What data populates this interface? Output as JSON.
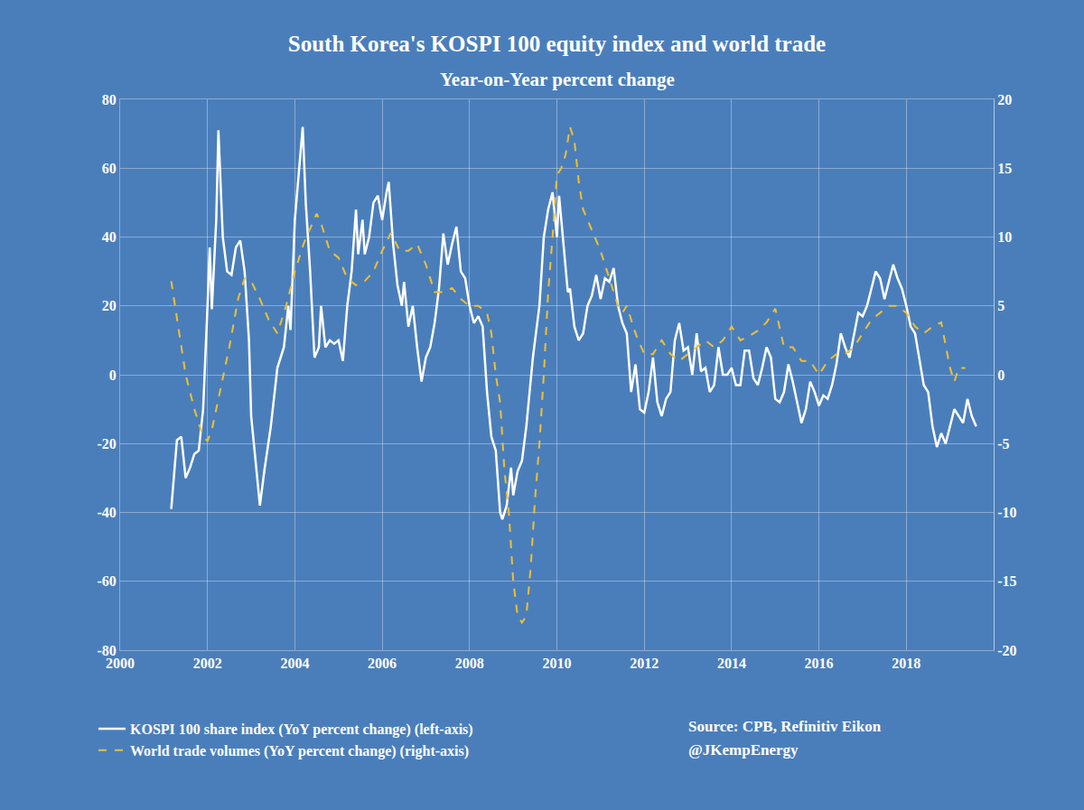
{
  "chart_data": {
    "type": "line",
    "title": "South Korea's KOSPI 100 equity index and world trade",
    "subtitle": "Year-on-Year percent change",
    "annotations": [
      "Source: CPB, Refinitiv Eikon",
      "@JKempEnergy"
    ],
    "xlim": [
      2000,
      2020
    ],
    "xticks": [
      2000,
      2002,
      2004,
      2006,
      2008,
      2010,
      2012,
      2014,
      2016,
      2018
    ],
    "ylim": [
      -80,
      80
    ],
    "yticks": [
      -80,
      -60,
      -40,
      -20,
      0,
      20,
      40,
      60,
      80
    ],
    "y2lim": [
      -20,
      20
    ],
    "y2ticks": [
      -20,
      -15,
      -10,
      -5,
      0,
      5,
      10,
      15,
      20
    ],
    "grid": true,
    "legend": "bottom",
    "series": [
      {
        "name": "KOSPI 100 share index (YoY percent change) (left-axis)",
        "color": "#ffffff",
        "line_style": "solid",
        "axis": "y",
        "x": [
          2001.17,
          2001.3,
          2001.4,
          2001.5,
          2001.6,
          2001.7,
          2001.8,
          2001.9,
          2002.0,
          2002.05,
          2002.1,
          2002.2,
          2002.25,
          2002.35,
          2002.45,
          2002.55,
          2002.65,
          2002.75,
          2002.85,
          2002.95,
          2003.0,
          2003.1,
          2003.2,
          2003.3,
          2003.45,
          2003.6,
          2003.75,
          2003.85,
          2003.9,
          2004.0,
          2004.1,
          2004.18,
          2004.25,
          2004.35,
          2004.45,
          2004.55,
          2004.6,
          2004.7,
          2004.8,
          2004.9,
          2005.0,
          2005.1,
          2005.2,
          2005.3,
          2005.4,
          2005.45,
          2005.55,
          2005.6,
          2005.7,
          2005.8,
          2005.9,
          2006.0,
          2006.1,
          2006.15,
          2006.25,
          2006.35,
          2006.45,
          2006.5,
          2006.6,
          2006.7,
          2006.8,
          2006.9,
          2007.0,
          2007.1,
          2007.2,
          2007.3,
          2007.4,
          2007.5,
          2007.6,
          2007.7,
          2007.8,
          2007.9,
          2008.0,
          2008.1,
          2008.2,
          2008.3,
          2008.4,
          2008.5,
          2008.6,
          2008.7,
          2008.75,
          2008.85,
          2008.95,
          2009.0,
          2009.1,
          2009.2,
          2009.3,
          2009.45,
          2009.6,
          2009.7,
          2009.8,
          2009.9,
          2010.0,
          2010.05,
          2010.15,
          2010.25,
          2010.3,
          2010.4,
          2010.5,
          2010.6,
          2010.7,
          2010.8,
          2010.9,
          2011.0,
          2011.1,
          2011.2,
          2011.3,
          2011.4,
          2011.5,
          2011.6,
          2011.7,
          2011.8,
          2011.9,
          2012.0,
          2012.1,
          2012.2,
          2012.3,
          2012.4,
          2012.5,
          2012.6,
          2012.7,
          2012.8,
          2012.9,
          2013.0,
          2013.1,
          2013.2,
          2013.3,
          2013.4,
          2013.5,
          2013.6,
          2013.7,
          2013.8,
          2013.9,
          2014.0,
          2014.1,
          2014.2,
          2014.3,
          2014.4,
          2014.5,
          2014.6,
          2014.7,
          2014.8,
          2014.9,
          2015.0,
          2015.1,
          2015.2,
          2015.3,
          2015.4,
          2015.5,
          2015.6,
          2015.7,
          2015.8,
          2015.9,
          2016.0,
          2016.1,
          2016.2,
          2016.3,
          2016.4,
          2016.5,
          2016.6,
          2016.7,
          2016.8,
          2016.9,
          2017.0,
          2017.1,
          2017.2,
          2017.3,
          2017.4,
          2017.5,
          2017.6,
          2017.7,
          2017.8,
          2017.9,
          2018.0,
          2018.1,
          2018.2,
          2018.3,
          2018.4,
          2018.5,
          2018.6,
          2018.7,
          2018.8,
          2018.9,
          2019.0,
          2019.1,
          2019.2,
          2019.3,
          2019.4,
          2019.5,
          2019.6
        ],
        "values": [
          -39,
          -19,
          -18,
          -30,
          -27,
          -23,
          -22,
          -10,
          20,
          37,
          19,
          45,
          71,
          40,
          30,
          29,
          37,
          39,
          30,
          10,
          -12,
          -25,
          -38,
          -28,
          -15,
          2,
          8,
          20,
          13,
          45,
          60,
          72,
          50,
          30,
          5,
          8,
          20,
          8,
          10,
          9,
          10,
          4,
          20,
          30,
          48,
          35,
          45,
          35,
          40,
          50,
          52,
          45,
          53,
          56,
          38,
          26,
          20,
          27,
          14,
          20,
          8,
          -2,
          5,
          8,
          15,
          25,
          41,
          32,
          38,
          43,
          30,
          28,
          20,
          15,
          17,
          14,
          -5,
          -18,
          -22,
          -40,
          -42,
          -38,
          -27,
          -35,
          -28,
          -25,
          -15,
          5,
          20,
          40,
          48,
          53,
          40,
          52,
          38,
          24,
          25,
          14,
          10,
          12,
          20,
          23,
          29,
          22,
          28,
          27,
          31,
          20,
          15,
          12,
          -5,
          3,
          -10,
          -11,
          -5,
          5,
          -8,
          -12,
          -7,
          -5,
          10,
          15,
          7,
          8,
          0,
          12,
          1,
          2,
          -5,
          -3,
          8,
          0,
          0,
          2,
          -3,
          -3,
          7,
          7,
          -1,
          -3,
          2,
          8,
          5,
          -7,
          -8,
          -5,
          3,
          -2,
          -8,
          -14,
          -10,
          -2,
          -5,
          -9,
          -6,
          -7,
          -3,
          3,
          12,
          8,
          5,
          12,
          18,
          17,
          20,
          25,
          30,
          28,
          22,
          27,
          32,
          28,
          25,
          20,
          14,
          12,
          5,
          -3,
          -5,
          -15,
          -21,
          -17,
          -20,
          -15,
          -10,
          -12,
          -14,
          -7,
          -12,
          -15
        ]
      },
      {
        "name": "World trade volumes (YoY percent change) (right-axis)",
        "color": "#f0c030",
        "line_style": "dashed",
        "axis": "y2",
        "x": [
          2001.17,
          2001.3,
          2001.5,
          2001.7,
          2001.9,
          2002.0,
          2002.1,
          2002.3,
          2002.5,
          2002.7,
          2002.85,
          2003.0,
          2003.2,
          2003.4,
          2003.6,
          2003.8,
          2004.0,
          2004.2,
          2004.4,
          2004.5,
          2004.6,
          2004.8,
          2005.0,
          2005.2,
          2005.4,
          2005.6,
          2005.8,
          2006.0,
          2006.2,
          2006.4,
          2006.6,
          2006.8,
          2007.0,
          2007.2,
          2007.4,
          2007.6,
          2007.8,
          2008.0,
          2008.2,
          2008.4,
          2008.5,
          2008.6,
          2008.7,
          2008.8,
          2008.9,
          2009.0,
          2009.1,
          2009.2,
          2009.3,
          2009.4,
          2009.5,
          2009.6,
          2009.7,
          2009.8,
          2009.9,
          2010.0,
          2010.1,
          2010.2,
          2010.3,
          2010.4,
          2010.5,
          2010.6,
          2010.8,
          2011.0,
          2011.2,
          2011.4,
          2011.5,
          2011.6,
          2011.8,
          2012.0,
          2012.2,
          2012.4,
          2012.6,
          2012.8,
          2013.0,
          2013.2,
          2013.4,
          2013.6,
          2013.8,
          2014.0,
          2014.2,
          2014.4,
          2014.6,
          2014.8,
          2015.0,
          2015.2,
          2015.4,
          2015.6,
          2015.8,
          2016.0,
          2016.2,
          2016.4,
          2016.6,
          2016.8,
          2017.0,
          2017.2,
          2017.4,
          2017.6,
          2017.8,
          2018.0,
          2018.2,
          2018.4,
          2018.6,
          2018.8,
          2019.0,
          2019.1,
          2019.2,
          2019.35
        ],
        "values": [
          6.8,
          4,
          0,
          -2.5,
          -4.5,
          -4.8,
          -4,
          -1,
          2,
          5.5,
          7,
          6.8,
          5.5,
          4,
          3,
          5,
          7.5,
          9.5,
          11,
          11.7,
          11,
          9,
          8.5,
          7,
          6.5,
          6.8,
          7.5,
          9,
          10.3,
          9,
          9,
          9.5,
          8,
          6,
          6,
          6.3,
          5.5,
          5,
          5,
          4.5,
          3,
          0,
          -2,
          -7,
          -10,
          -15,
          -17.5,
          -18,
          -17.5,
          -14,
          -9,
          -5,
          0,
          6,
          10,
          14.5,
          15,
          16,
          18,
          17,
          14,
          12,
          10.5,
          9,
          7,
          5,
          4.5,
          5,
          3,
          1.5,
          1.5,
          2.5,
          1.5,
          1,
          1.5,
          2,
          2.5,
          2,
          2.5,
          3.5,
          2.5,
          2.8,
          3.2,
          3.8,
          4.8,
          2,
          2,
          1,
          1,
          0,
          1,
          1.5,
          1.5,
          2,
          3,
          4,
          4.5,
          5,
          5,
          4.5,
          3.5,
          3,
          3.5,
          3.8,
          0.5,
          -0.5,
          0.5,
          0.5
        ]
      }
    ]
  }
}
